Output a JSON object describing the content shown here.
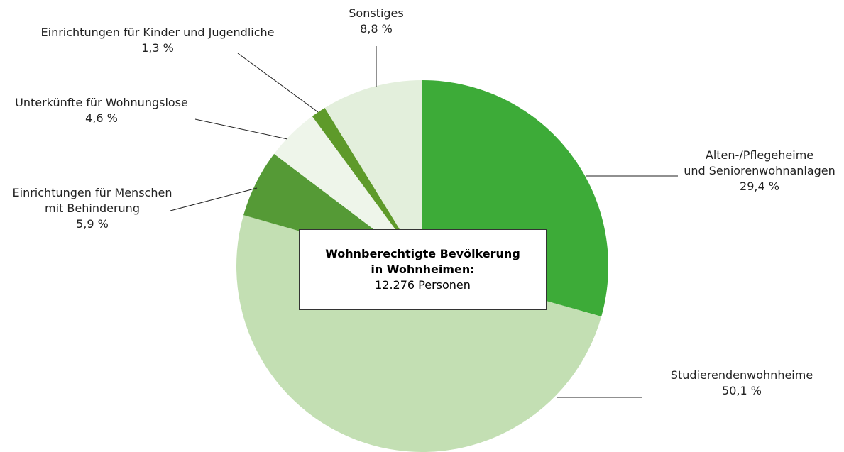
{
  "chart_data": {
    "type": "pie",
    "categories": [
      "Alten-/Pflegeheime\nund Seniorenwohnanlagen",
      "Studierendenwohnheime",
      "Einrichtungen für Menschen\nmit Behinderung",
      "Unterkünfte für Wohnungslose",
      "Einrichtungen für Kinder und Jugendliche",
      "Sonstiges"
    ],
    "values": [
      29.4,
      50.1,
      5.9,
      4.6,
      1.3,
      8.8
    ],
    "value_labels": [
      "29,4 %",
      "50,1 %",
      "5,9 %",
      "4,6 %",
      "1,3 %",
      "8,8 %"
    ],
    "colors": [
      "#3dab38",
      "#c3dfb3",
      "#559a36",
      "#eef5ea",
      "#5e9a2a",
      "#e3efdc"
    ],
    "annotation": {
      "title": "Wohnberechtigte Bevölkerung\nin Wohnheimen:",
      "text": "12.276 Personen"
    }
  }
}
